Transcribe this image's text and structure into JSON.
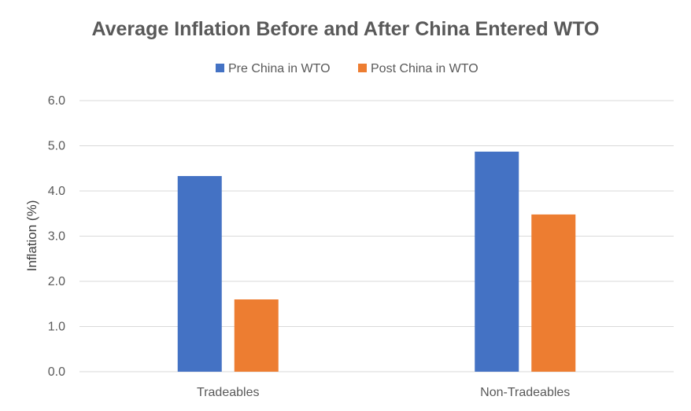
{
  "chart_data": {
    "type": "bar",
    "title": "Average Inflation Before and After China Entered WTO",
    "xlabel": "",
    "ylabel": "Inflation (%)",
    "categories": [
      "Tradeables",
      "Non-Tradeables"
    ],
    "series": [
      {
        "name": "Pre China in WTO",
        "color": "#4472C4",
        "values": [
          4.33,
          4.87
        ]
      },
      {
        "name": "Post China in WTO",
        "color": "#ED7D31",
        "values": [
          1.6,
          3.48
        ]
      }
    ],
    "ylim": [
      0,
      6
    ],
    "yticks": [
      "0.0",
      "1.0",
      "2.0",
      "3.0",
      "4.0",
      "5.0",
      "6.0"
    ],
    "grid": true,
    "legend_position": "top-center"
  }
}
